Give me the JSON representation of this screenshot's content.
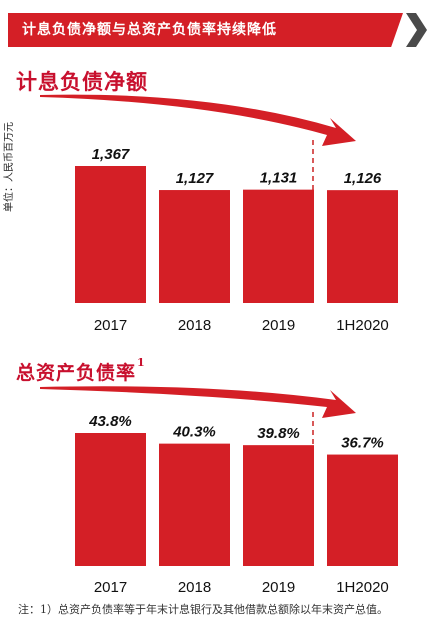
{
  "header": {
    "title": "计息负债净额与总资产负债率持续降低"
  },
  "section1": {
    "title": "计息负债净额",
    "unit": "单位：人民币百万元"
  },
  "section2": {
    "title": "总资产负债率",
    "footnote_marker": "1"
  },
  "footnote": {
    "text": "注：1）总资产负债率等于年末计息银行及其他借款总额除以年末资产总值。"
  },
  "colors": {
    "bar": "#d41f26",
    "accent": "#c8102e",
    "divider": "#cc2222"
  },
  "chart_data": [
    {
      "type": "bar",
      "title": "计息负债净额",
      "ylabel": "单位：人民币百万元",
      "categories": [
        "2017",
        "2018",
        "2019",
        "1H2020"
      ],
      "values": [
        1367,
        1127,
        1131,
        1126
      ],
      "labels": [
        "1,367",
        "1,127",
        "1,131",
        "1,126"
      ],
      "ylim": [
        0,
        1367
      ],
      "grid": false,
      "trend_arrow": "down"
    },
    {
      "type": "bar",
      "title": "总资产负债率",
      "categories": [
        "2017",
        "2018",
        "2019",
        "1H2020"
      ],
      "values": [
        43.8,
        40.3,
        39.8,
        36.7
      ],
      "labels": [
        "43.8%",
        "40.3%",
        "39.8%",
        "36.7%"
      ],
      "ylim": [
        0,
        43.8
      ],
      "grid": false,
      "trend_arrow": "down"
    }
  ]
}
